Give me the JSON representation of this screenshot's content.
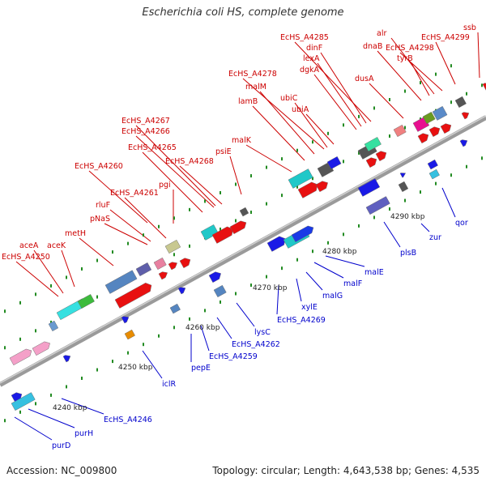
{
  "title": "Escherichia coli HS, complete genome",
  "accession_text": "Accession: NC_009800",
  "summary_text": "Topology: circular; Length: 4,643,538 bp; Genes: 4,535",
  "colors": {
    "backbone": "#9a9a9a",
    "label_top": "#cc0000",
    "label_bottom": "#0000cc",
    "tick_mark": "#228b22"
  },
  "scale_labels": [
    "4240 kbp",
    "4250 kbp",
    "4260 kbp",
    "4270 kbp",
    "4280 kbp",
    "4290 kbp"
  ],
  "top_labels": [
    "aceA",
    "EcHS_A4250",
    "aceK",
    "metH",
    "pNaS",
    "rluF",
    "EcHS_A4261",
    "EcHS_A4260",
    "pgi",
    "EcHS_A4265",
    "EcHS_A4266",
    "EcHS_A4267",
    "EcHS_A4268",
    "psiE",
    "malK",
    "lamB",
    "malM",
    "EcHS_A4278",
    "ubiC",
    "ubiA",
    "dgkA",
    "lexA",
    "dinF",
    "EcHS_A4285",
    "dusA",
    "dnaB",
    "alr",
    "EcHS_A4298",
    "tyrB",
    "EcHS_A4299",
    "ssb"
  ],
  "bottom_labels": [
    "purD",
    "purH",
    "EcHS_A4246",
    "iclR",
    "pepE",
    "EcHS_A4259",
    "EcHS_A4262",
    "lysC",
    "EcHS_A4269",
    "xylE",
    "malG",
    "malF",
    "malE",
    "plsB",
    "zur",
    "qor"
  ]
}
